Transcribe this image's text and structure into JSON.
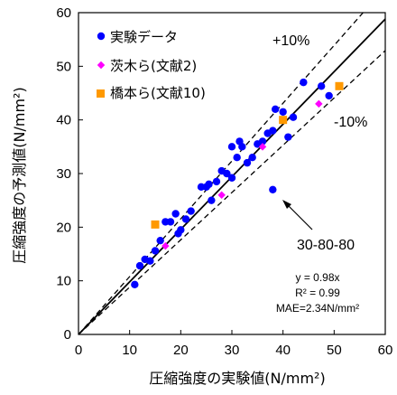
{
  "chart_data": {
    "type": "scatter",
    "xlabel": "圧縮強度の実験値(N/mm²)",
    "ylabel": "圧縮強度の予測値(N/mm²)",
    "xlim": [
      0,
      60
    ],
    "ylim": [
      0,
      60
    ],
    "xticks": [
      "0",
      "10",
      "20",
      "30",
      "40",
      "50",
      "60"
    ],
    "yticks": [
      "0",
      "10",
      "20",
      "30",
      "40",
      "50",
      "60"
    ],
    "grid": false,
    "legend_position": "top-left",
    "series": [
      {
        "name": "実験データ",
        "marker": "circle",
        "color": "#0000ff",
        "points": [
          [
            11,
            9.3
          ],
          [
            12,
            12.8
          ],
          [
            13,
            14
          ],
          [
            14,
            13.7
          ],
          [
            15,
            15.6
          ],
          [
            16,
            17.5
          ],
          [
            17,
            21
          ],
          [
            18,
            21
          ],
          [
            19,
            22.5
          ],
          [
            19.5,
            18.8
          ],
          [
            20,
            19.5
          ],
          [
            21,
            21.5
          ],
          [
            22,
            23
          ],
          [
            24,
            27.5
          ],
          [
            25,
            27.5
          ],
          [
            25.5,
            28
          ],
          [
            26,
            25
          ],
          [
            27,
            28.5
          ],
          [
            28,
            30.5
          ],
          [
            29,
            30
          ],
          [
            30,
            29.2
          ],
          [
            30,
            35
          ],
          [
            31,
            33
          ],
          [
            31.5,
            36
          ],
          [
            32,
            35
          ],
          [
            33,
            32
          ],
          [
            34,
            33
          ],
          [
            35,
            35.5
          ],
          [
            36,
            36
          ],
          [
            37,
            37.5
          ],
          [
            38,
            38
          ],
          [
            38.5,
            42
          ],
          [
            40,
            41.5
          ],
          [
            41,
            36.8
          ],
          [
            42,
            40.5
          ],
          [
            44,
            47
          ],
          [
            47.5,
            46.3
          ],
          [
            49,
            44.5
          ],
          [
            38,
            27
          ]
        ]
      },
      {
        "name": "茨木ら(文献2)",
        "marker": "diamond",
        "color": "#ff00ff",
        "points": [
          [
            17,
            16.5
          ],
          [
            28,
            26
          ],
          [
            36,
            35
          ],
          [
            47,
            43
          ]
        ]
      },
      {
        "name": "橋本ら(文献10)",
        "marker": "square",
        "color": "#ff9900",
        "points": [
          [
            15,
            20.5
          ],
          [
            40,
            40
          ],
          [
            51,
            46.3
          ]
        ]
      }
    ],
    "reference_lines": [
      {
        "label": "y = 0.98x",
        "slope": 0.98,
        "style": "solid"
      },
      {
        "label": "+10%",
        "slope": 1.078,
        "style": "dashed"
      },
      {
        "label": "-10%",
        "slope": 0.882,
        "style": "dashed"
      }
    ],
    "annotations": {
      "plus10": "+10%",
      "minus10": "-10%",
      "outlier": "30-80-80",
      "stats": [
        "y = 0.98x",
        "R² = 0.99",
        "MAE=2.34N/mm²"
      ]
    }
  }
}
